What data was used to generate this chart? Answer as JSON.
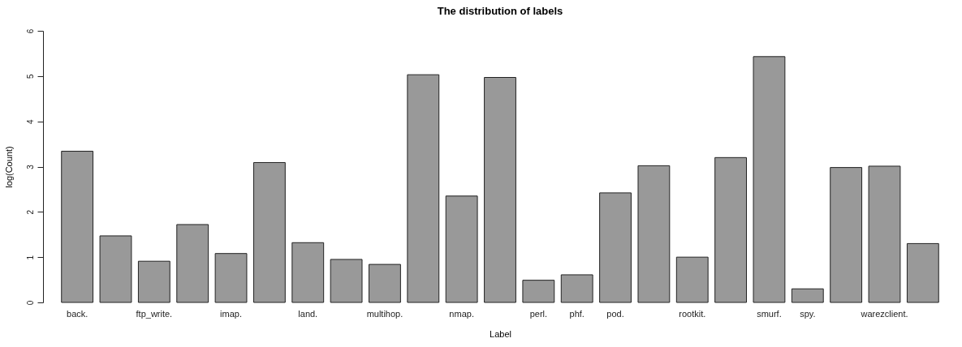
{
  "chart_data": {
    "type": "bar",
    "title": "The distribution of labels",
    "xlabel": "Label",
    "ylabel": "log(Count)",
    "categories": [
      "back.",
      null,
      "ftp_write.",
      null,
      "imap.",
      null,
      "land.",
      null,
      "multihop.",
      null,
      "nmap.",
      null,
      "perl.",
      "phf.",
      "pod.",
      null,
      "rootkit.",
      null,
      "smurf.",
      "spy.",
      null,
      "warezclient.",
      null
    ],
    "values": [
      3.34,
      1.47,
      0.91,
      1.72,
      1.08,
      3.09,
      1.32,
      0.95,
      0.84,
      5.03,
      2.35,
      4.97,
      0.49,
      0.61,
      2.42,
      3.02,
      1.0,
      3.2,
      5.43,
      0.3,
      2.98,
      3.01,
      1.3
    ],
    "color": "#999999",
    "ylim": [
      0,
      6
    ],
    "yticks": [
      0,
      1,
      2,
      3,
      4,
      5,
      6
    ],
    "grid": false
  }
}
